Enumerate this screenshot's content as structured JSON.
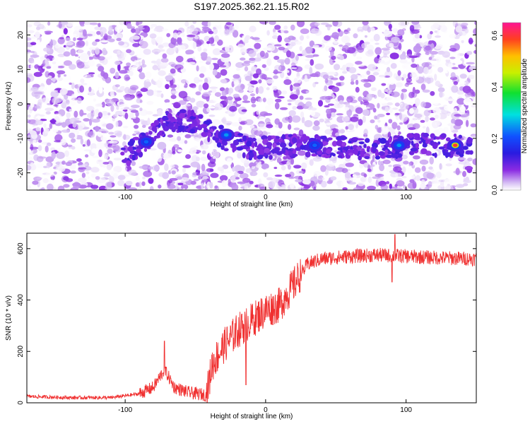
{
  "title": "S197.2025.362.21.15.R02",
  "chart_data": [
    {
      "type": "heatmap",
      "xlabel": "Height of straight line (km)",
      "ylabel": "Frequency (Hz)",
      "xlim": [
        -170,
        150
      ],
      "ylim": [
        -25,
        24
      ],
      "x_ticks": [
        -100,
        0,
        100
      ],
      "y_ticks": [
        -20,
        -10,
        0,
        10,
        20
      ],
      "colorbar": {
        "label": "Normalized spectral amplitude",
        "range": [
          0.0,
          0.65
        ],
        "ticks": [
          0.0,
          0.2,
          0.4,
          0.6
        ],
        "tick_labels": [
          "0.0",
          "0.2",
          "0.4",
          "0.6"
        ]
      },
      "ridge": {
        "description_points": [
          {
            "x": -100,
            "y": -15
          },
          {
            "x": -85,
            "y": -11
          },
          {
            "x": -70,
            "y": -5
          },
          {
            "x": -50,
            "y": -5
          },
          {
            "x": -30,
            "y": -10
          },
          {
            "x": -10,
            "y": -13
          },
          {
            "x": 20,
            "y": -12
          },
          {
            "x": 40,
            "y": -12
          },
          {
            "x": 60,
            "y": -13
          },
          {
            "x": 80,
            "y": -13
          },
          {
            "x": 100,
            "y": -12
          },
          {
            "x": 140,
            "y": -12
          }
        ],
        "peaks": [
          {
            "x": -85,
            "y": -11,
            "amp": 0.22
          },
          {
            "x": -28,
            "y": -9,
            "amp": 0.25
          },
          {
            "x": 35,
            "y": -12,
            "amp": 0.22
          },
          {
            "x": 95,
            "y": -12,
            "amp": 0.25
          },
          {
            "x": 135,
            "y": -12,
            "amp": 0.6
          }
        ]
      }
    },
    {
      "type": "line",
      "xlabel": "Height of straight line (km)",
      "ylabel": "SNR (10 * v/v)",
      "xlim": [
        -170,
        150
      ],
      "ylim": [
        0,
        660
      ],
      "x_ticks": [
        -100,
        0,
        100
      ],
      "y_ticks": [
        0,
        200,
        400,
        600
      ],
      "series": [
        {
          "color": "#f03030",
          "trend": [
            {
              "x": -170,
              "y": 25
            },
            {
              "x": -140,
              "y": 20
            },
            {
              "x": -110,
              "y": 20
            },
            {
              "x": -90,
              "y": 35
            },
            {
              "x": -80,
              "y": 60
            },
            {
              "x": -72,
              "y": 130
            },
            {
              "x": -65,
              "y": 60
            },
            {
              "x": -55,
              "y": 40
            },
            {
              "x": -42,
              "y": 30
            },
            {
              "x": -38,
              "y": 150
            },
            {
              "x": -30,
              "y": 220
            },
            {
              "x": -20,
              "y": 280
            },
            {
              "x": -10,
              "y": 320
            },
            {
              "x": 0,
              "y": 360
            },
            {
              "x": 10,
              "y": 380
            },
            {
              "x": 20,
              "y": 460
            },
            {
              "x": 30,
              "y": 540
            },
            {
              "x": 40,
              "y": 560
            },
            {
              "x": 60,
              "y": 570
            },
            {
              "x": 80,
              "y": 575
            },
            {
              "x": 100,
              "y": 570
            },
            {
              "x": 120,
              "y": 565
            },
            {
              "x": 150,
              "y": 560
            }
          ],
          "spikes": [
            {
              "x": -72,
              "y": 240
            },
            {
              "x": -17,
              "y": 345
            },
            {
              "x": -14,
              "y": 70
            },
            {
              "x": 15,
              "y": 395
            },
            {
              "x": 92,
              "y": 655
            },
            {
              "x": 90,
              "y": 470
            }
          ]
        }
      ]
    }
  ]
}
